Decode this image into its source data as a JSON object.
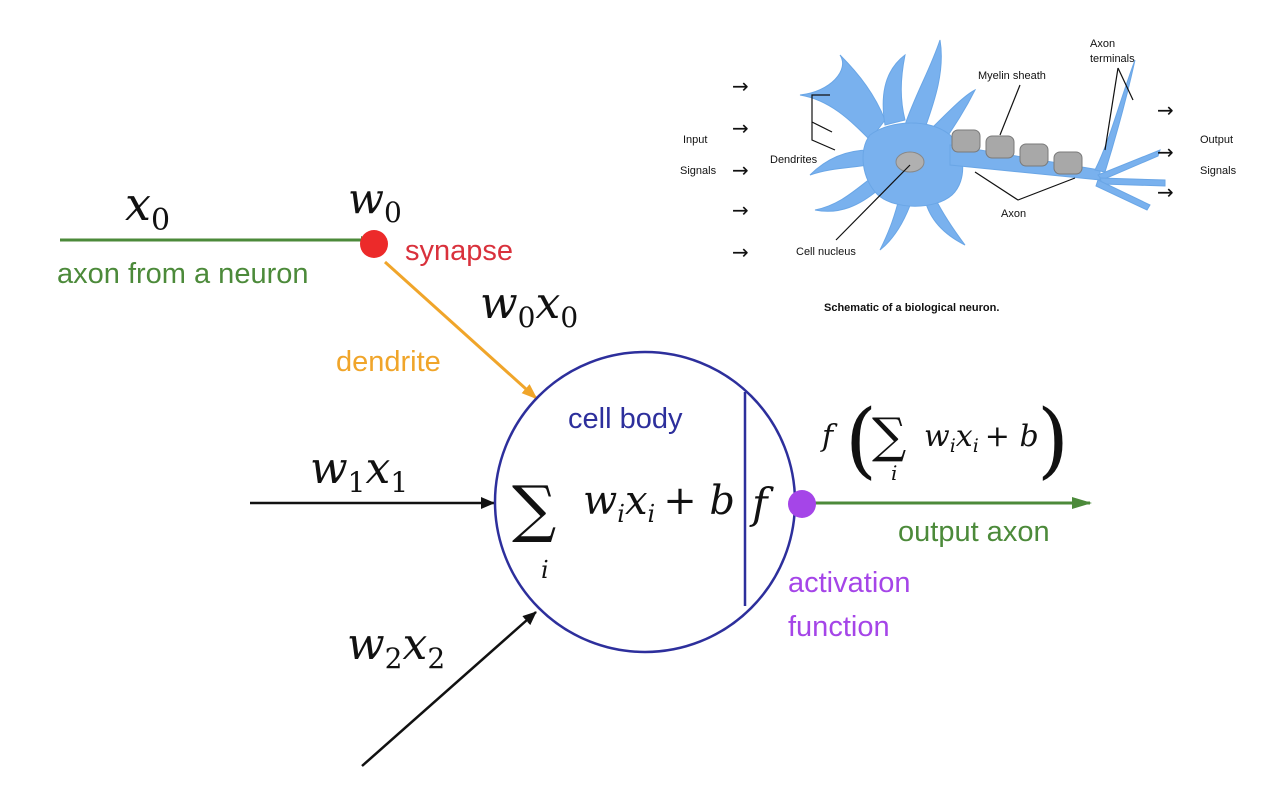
{
  "colors": {
    "input_axon": "#4c8a3a",
    "synapse_dot": "#ec2a2a",
    "synapse_text": "#d9313c",
    "dendrite": "#f0a52a",
    "cell_body": "#2d2f9c",
    "activation": "#a545e8",
    "output_axon": "#4c8a3a",
    "arrow_black": "#111111",
    "neuron_fill": "#79b1ee"
  },
  "icons": {
    "synapse": "red-dot",
    "activation": "purple-dot"
  },
  "artificial_neuron": {
    "input0": {
      "x_label": {
        "base": "x",
        "sub": "0"
      },
      "w_label": {
        "base": "w",
        "sub": "0"
      },
      "axon_label": "axon from a neuron",
      "synapse_label": "synapse",
      "product": {
        "w": "w",
        "w_sub": "0",
        "x": "x",
        "x_sub": "0"
      },
      "dendrite_label": "dendrite"
    },
    "input1": {
      "w": "w",
      "w_sub": "1",
      "x": "x",
      "x_sub": "1"
    },
    "input2": {
      "w": "w",
      "w_sub": "2",
      "x": "x",
      "x_sub": "2"
    },
    "cell_body_label": "cell body",
    "sum": {
      "sigma": "∑",
      "index": "i",
      "term_w": "w",
      "term_x": "x",
      "sub": "i",
      "plus_b": "+ b"
    },
    "activation_symbol": "f",
    "output_formula": {
      "f": "f",
      "open": "(",
      "sigma": "∑",
      "index": "i",
      "term_w": "w",
      "term_x": "x",
      "sub": "i",
      "plus_b": "+ b",
      "close": ")"
    },
    "output_axon_label": "output axon",
    "activation_label_line1": "activation",
    "activation_label_line2": "function"
  },
  "biological_neuron": {
    "input_label": "Input",
    "signals_label": "Signals",
    "dendrites_label": "Dendrites",
    "myelin_label": "Myelin sheath",
    "axon_terminals_line1": "Axon",
    "axon_terminals_line2": "terminals",
    "cell_nucleus_label": "Cell nucleus",
    "axon_label": "Axon",
    "output_label": "Output",
    "output_signals_label": "Signals",
    "caption": "Schematic of a biological neuron.",
    "arrow_glyph": "→"
  }
}
